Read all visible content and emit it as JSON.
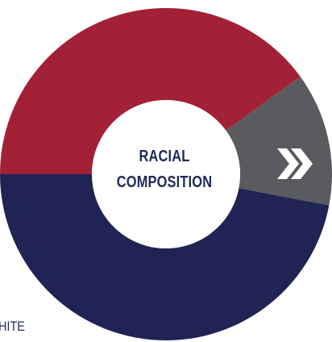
{
  "chart_data": {
    "type": "pie",
    "title": "",
    "center_label": [
      "RACIAL",
      "COMPOSITION"
    ],
    "categories": [
      "",
      "",
      ""
    ],
    "values": [
      0.4,
      0.13,
      0.47
    ],
    "colors": [
      "#a32136",
      "#5a5b5e",
      "#1f2454"
    ],
    "partial_label": "HITE"
  },
  "icons": {
    "next": "double-chevron-right-icon"
  },
  "colors": {
    "background": "#ffffff",
    "center_text": "#1f2a5a",
    "icon": "#ffffff"
  }
}
